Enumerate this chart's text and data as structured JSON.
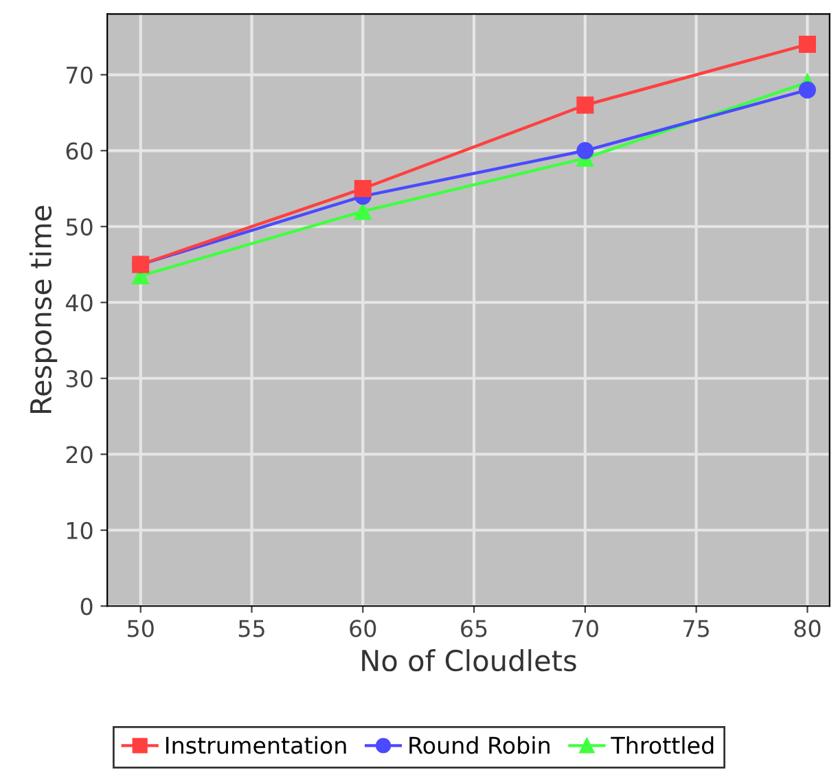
{
  "chart_data": {
    "type": "line",
    "xlabel": "No of Cloudlets",
    "ylabel": "Response time",
    "x": [
      50,
      60,
      70,
      80
    ],
    "series": [
      {
        "name": "Instrumentation",
        "color": "#ff4040",
        "marker": "square",
        "values": [
          45,
          55,
          66,
          74
        ]
      },
      {
        "name": "Round Robin",
        "color": "#4a4aff",
        "marker": "circle",
        "values": [
          45,
          54,
          60,
          68
        ]
      },
      {
        "name": "Throttled",
        "color": "#40ff40",
        "marker": "triangle",
        "values": [
          43.5,
          52,
          59,
          69
        ]
      }
    ],
    "xlim": [
      48.5,
      81
    ],
    "xticks": [
      50,
      55,
      60,
      65,
      70,
      75,
      80
    ],
    "ylim": [
      0,
      78
    ],
    "yticks": [
      0,
      10,
      20,
      30,
      40,
      50,
      60,
      70
    ],
    "grid": true,
    "legend": "bottom",
    "line_style": "solid"
  }
}
